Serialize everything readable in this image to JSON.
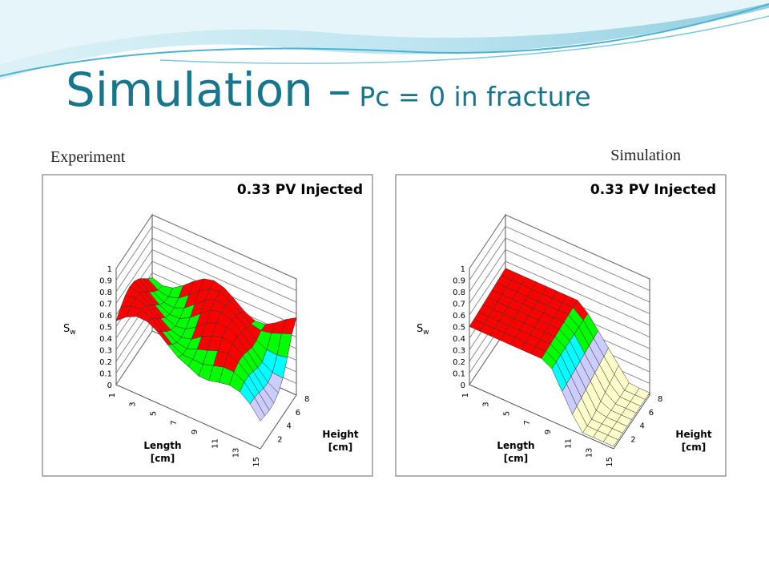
{
  "slide": {
    "title": "Simulation –",
    "title_small": "Pc = 0 in fracture",
    "panels": [
      {
        "caption": "Experiment",
        "plot_title": "0.33 PV Injected",
        "z_label": {
          "main": "S",
          "sub": "w"
        },
        "zticks": [
          "0",
          "0.1",
          "0.2",
          "0.3",
          "0.4",
          "0.5",
          "0.6",
          "0.7",
          "0.8",
          "0.9",
          "1"
        ],
        "length_ticks": [
          "1",
          "3",
          "5",
          "7",
          "9",
          "11",
          "13",
          "15"
        ],
        "length_label": [
          "Length",
          "[cm]"
        ],
        "height_ticks": [
          "2",
          "4",
          "6",
          "8"
        ],
        "height_label": [
          "Height",
          "[cm]"
        ]
      },
      {
        "caption": "Simulation",
        "plot_title": "0.33 PV Injected",
        "z_label": {
          "main": "S",
          "sub": "w"
        },
        "zticks": [
          "0",
          "0.1",
          "0.2",
          "0.3",
          "0.4",
          "0.5",
          "0.6",
          "0.7",
          "0.8",
          "0.9",
          "1"
        ],
        "length_ticks": [
          "1",
          "3",
          "5",
          "7",
          "9",
          "11",
          "13",
          "15"
        ],
        "length_label": [
          "Length",
          "[cm]"
        ],
        "height_ticks": [
          "2",
          "4",
          "6",
          "8"
        ],
        "height_label": [
          "Height",
          "[cm]"
        ]
      }
    ]
  }
}
